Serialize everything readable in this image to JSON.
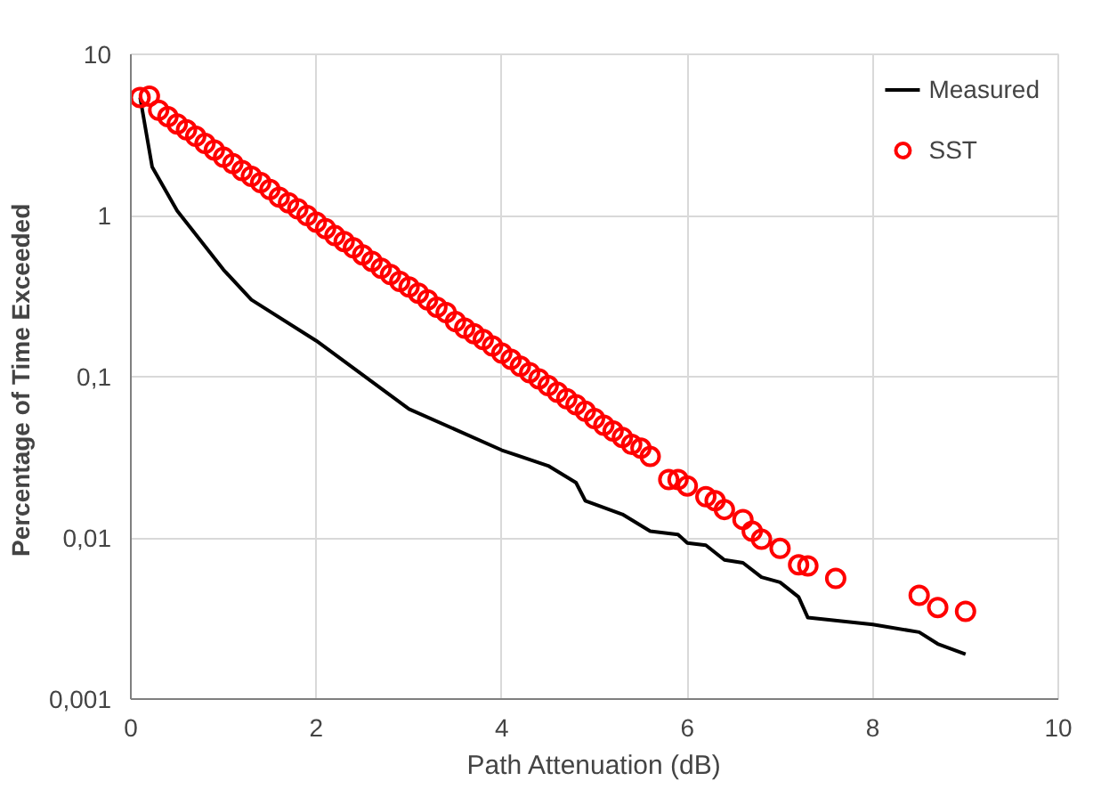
{
  "chart_data": {
    "type": "line",
    "xlabel": "Path Attenuation (dB)",
    "ylabel": "Percentage of Time  Exceeded",
    "log": "y",
    "grid": true,
    "legend": "top right",
    "xlim": [
      0,
      10
    ],
    "xticks": [
      0,
      2,
      4,
      6,
      8,
      10
    ],
    "ylim": [
      0.001,
      10
    ],
    "yticks": [
      {
        "value": 0.001,
        "label": "0,001"
      },
      {
        "value": 0.01,
        "label": "0,01"
      },
      {
        "value": 0.1,
        "label": "0,1"
      },
      {
        "value": 1,
        "label": "1"
      },
      {
        "value": 10,
        "label": "10"
      }
    ],
    "series": [
      {
        "name": "Measured",
        "color": "#000000",
        "line_style": "solid",
        "x": [
          0.1,
          0.23,
          0.5,
          1.0,
          1.3,
          2.0,
          3.0,
          4.0,
          4.5,
          4.8,
          4.9,
          5.3,
          5.6,
          5.9,
          6.0,
          6.2,
          6.4,
          6.6,
          6.8,
          7.0,
          7.2,
          7.3,
          8.0,
          8.5,
          8.7,
          9.0
        ],
        "values": [
          5.4,
          2.0,
          1.07,
          0.46,
          0.3,
          0.167,
          0.063,
          0.035,
          0.028,
          0.022,
          0.017,
          0.014,
          0.011,
          0.0105,
          0.0093,
          0.009,
          0.0073,
          0.007,
          0.0057,
          0.0053,
          0.0043,
          0.0032,
          0.0029,
          0.0026,
          0.0022,
          0.0019
        ]
      },
      {
        "name": "SST",
        "type": "scatter",
        "color": "#ff0000",
        "marker": "circle",
        "x": [
          0.1,
          0.2,
          0.3,
          0.4,
          0.5,
          0.6,
          0.7,
          0.8,
          0.9,
          1.0,
          1.1,
          1.2,
          1.3,
          1.4,
          1.5,
          1.6,
          1.7,
          1.8,
          1.9,
          2.0,
          2.1,
          2.2,
          2.3,
          2.4,
          2.5,
          2.6,
          2.7,
          2.8,
          2.9,
          3.0,
          3.1,
          3.2,
          3.3,
          3.4,
          3.5,
          3.6,
          3.7,
          3.8,
          3.9,
          4.0,
          4.1,
          4.2,
          4.3,
          4.4,
          4.5,
          4.6,
          4.7,
          4.8,
          4.9,
          5.0,
          5.1,
          5.2,
          5.3,
          5.4,
          5.5,
          5.6,
          5.8,
          5.9,
          6.0,
          6.2,
          6.3,
          6.4,
          6.6,
          6.7,
          6.8,
          7.0,
          7.2,
          7.3,
          7.6,
          8.5,
          8.7,
          9.0
        ],
        "values": [
          5.4,
          5.5,
          4.5,
          4.1,
          3.7,
          3.4,
          3.1,
          2.8,
          2.55,
          2.3,
          2.1,
          1.9,
          1.75,
          1.6,
          1.45,
          1.3,
          1.2,
          1.1,
          1.0,
          0.91,
          0.83,
          0.75,
          0.69,
          0.63,
          0.57,
          0.52,
          0.47,
          0.43,
          0.39,
          0.36,
          0.33,
          0.3,
          0.27,
          0.25,
          0.22,
          0.2,
          0.185,
          0.17,
          0.155,
          0.14,
          0.128,
          0.116,
          0.106,
          0.097,
          0.088,
          0.08,
          0.073,
          0.067,
          0.061,
          0.055,
          0.05,
          0.046,
          0.042,
          0.038,
          0.036,
          0.032,
          0.023,
          0.023,
          0.021,
          0.018,
          0.017,
          0.015,
          0.013,
          0.011,
          0.0098,
          0.0086,
          0.0068,
          0.0067,
          0.0056,
          0.0044,
          0.0037,
          0.0035
        ]
      }
    ]
  }
}
